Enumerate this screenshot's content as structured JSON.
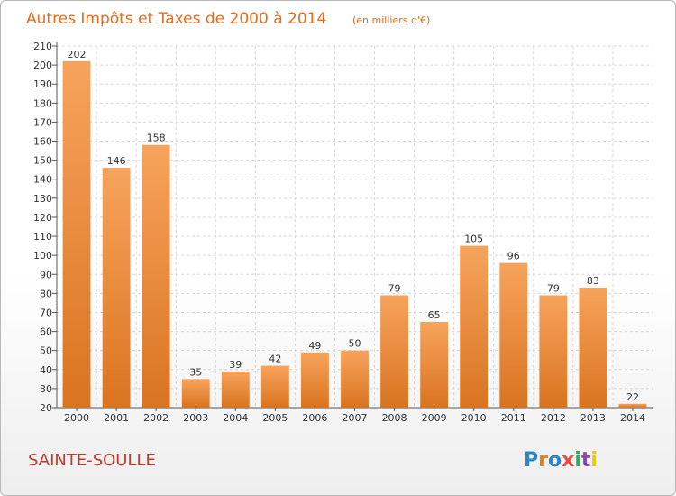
{
  "header": {
    "title": "Autres Impôts et Taxes de 2000 à 2014",
    "subtitle": "(en milliers d'€)"
  },
  "footer": {
    "commune": "SAINTE-SOULLE",
    "logo_letters": [
      "P",
      "r",
      "o",
      "x",
      "i",
      "t",
      "i"
    ]
  },
  "colors": {
    "title": "#e66b1d",
    "commune": "#c0392b",
    "bar_top": "#f7a35c",
    "bar_bottom": "#d97420",
    "logo": [
      "#2e86c1",
      "#e67e22",
      "#2e86c1",
      "#e74c3c",
      "#27ae60",
      "#8e44ad",
      "#f1c40f"
    ]
  },
  "chart_data": {
    "type": "bar",
    "title": "Autres Impôts et Taxes de 2000 à 2014",
    "subtitle": "(en milliers d'€)",
    "categories": [
      "2000",
      "2001",
      "2002",
      "2003",
      "2004",
      "2005",
      "2006",
      "2007",
      "2008",
      "2009",
      "2010",
      "2011",
      "2012",
      "2013",
      "2014"
    ],
    "values": [
      202,
      146,
      158,
      35,
      39,
      42,
      49,
      50,
      79,
      65,
      105,
      96,
      79,
      83,
      22
    ],
    "ylim": [
      20,
      210
    ],
    "yticks": [
      20,
      30,
      40,
      50,
      60,
      70,
      80,
      90,
      100,
      110,
      120,
      130,
      140,
      150,
      160,
      170,
      180,
      190,
      200,
      210
    ],
    "grid": true,
    "data_labels": true,
    "xlabel": "",
    "ylabel": ""
  }
}
